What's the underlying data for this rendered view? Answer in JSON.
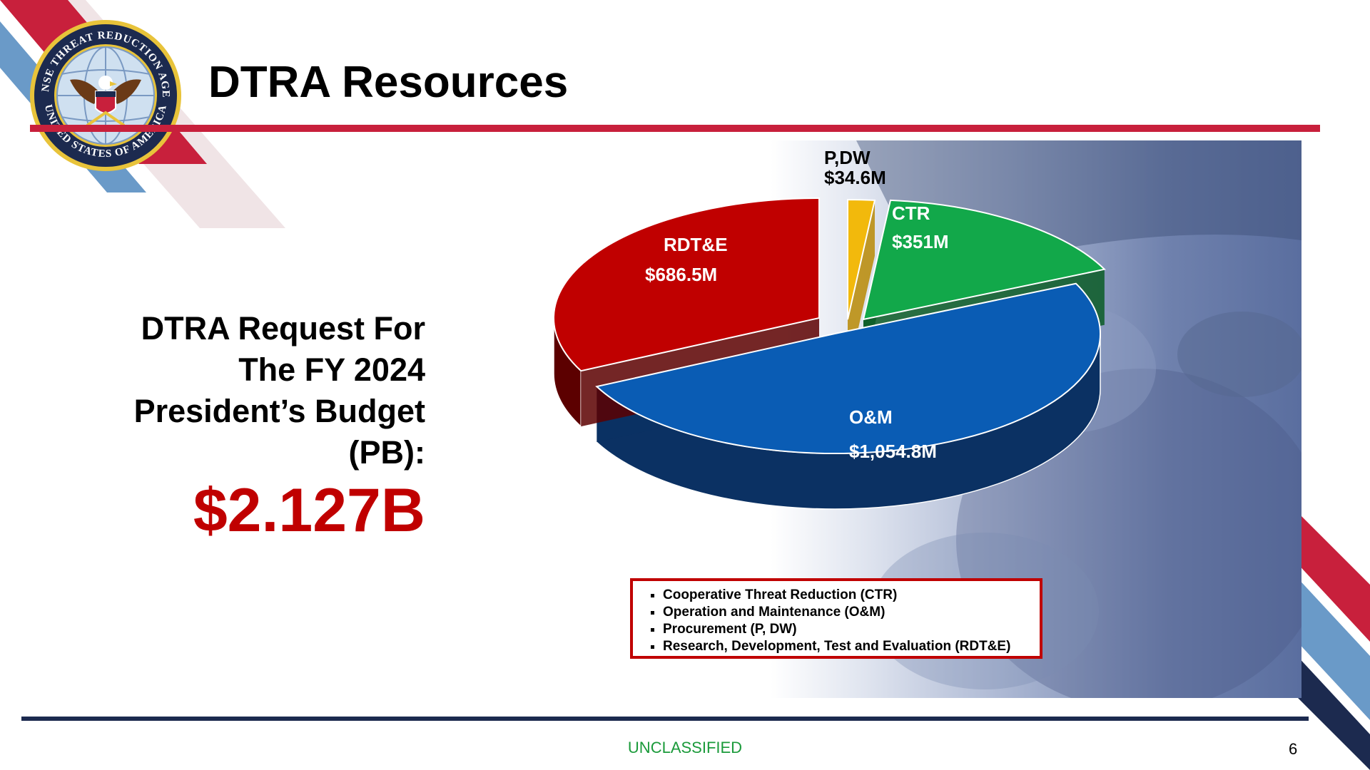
{
  "slide": {
    "title": "DTRA Resources",
    "request_lines": [
      "DTRA Request For",
      "The FY 2024",
      "President’s Budget",
      "(PB):"
    ],
    "total": "$2.127B",
    "classification": "UNCLASSIFIED",
    "page_number": "6",
    "seal": {
      "text_top": "DEFENSE THREAT REDUCTION AGENCY",
      "text_bottom": "UNITED STATES OF AMERICA"
    }
  },
  "legend": {
    "items": [
      "Cooperative Threat Reduction (CTR)",
      "Operation and Maintenance (O&M)",
      "Procurement (P, DW)",
      "Research, Development, Test and Evaluation (RDT&E)"
    ]
  },
  "chart_data": {
    "type": "pie",
    "title": "",
    "unit": "$M",
    "slices": [
      {
        "name": "P,DW",
        "value": 34.6,
        "label": "$34.6M",
        "color": "#f2b90c",
        "side": "#b88a05"
      },
      {
        "name": "CTR",
        "value": 351,
        "label": "$351M",
        "color": "#12a84a",
        "side": "#0a5c26"
      },
      {
        "name": "O&M",
        "value": 1054.8,
        "label": "$1,054.8M",
        "color": "#0a5cb4",
        "side": "#0b3163"
      },
      {
        "name": "RDT&E",
        "value": 686.5,
        "label": "$686.5M",
        "color": "#c00000",
        "side": "#5c0000"
      }
    ]
  },
  "colors": {
    "accent_red": "#c8203c",
    "total_red": "#c00000",
    "navy": "#1c2a4f",
    "classification_green": "#1a9a3a"
  }
}
